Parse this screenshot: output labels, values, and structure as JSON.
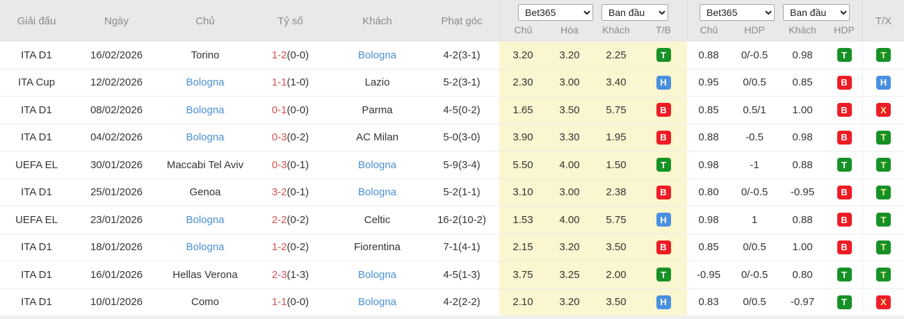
{
  "palette": {
    "header_bg": "#e9e9e9",
    "odds_block_bg": "#faf6d0",
    "badge_green": "#169126",
    "badge_blue": "#4a90e2",
    "badge_red": "#ee1c25",
    "badge_letter_yellow": "#f6f0a0",
    "team_link_blue": "#4a90d2",
    "score_red": "#d0514d"
  },
  "header": {
    "columns": {
      "league": "Giải đấu",
      "date": "Ngày",
      "home": "Chủ",
      "score": "Tỷ số",
      "away": "Khách",
      "corners": "Phạt góc"
    },
    "odds_1x2": {
      "bookmaker_selected": "Bet365",
      "line_selected": "Ban đầu",
      "sub": {
        "home": "Chủ",
        "draw": "Hòa",
        "away": "Khách",
        "result": "T/B"
      }
    },
    "odds_hdp": {
      "bookmaker_selected": "Bet365",
      "line_selected": "Ban đầu",
      "sub": {
        "home": "Chủ",
        "hdp": "HDP",
        "away": "Khách",
        "result": "HDP"
      }
    },
    "tx_label": "T/X"
  },
  "rows": [
    {
      "league": "ITA D1",
      "date": "16/02/2026",
      "home": "Torino",
      "home_highlight": false,
      "score": "1-2",
      "halftime": "(0-0)",
      "away": "Bologna",
      "away_highlight": true,
      "corners": "4-2(3-1)",
      "o1": "3.20",
      "o2": "3.20",
      "o3": "2.25",
      "r1": {
        "letter": "T",
        "color": "green",
        "fg": "white"
      },
      "h1": "0.88",
      "h2": "0/-0.5",
      "h3": "0.98",
      "r2": {
        "letter": "T",
        "color": "green",
        "fg": "white"
      },
      "tx": {
        "letter": "T",
        "color": "green",
        "fg": "yellow"
      }
    },
    {
      "league": "ITA Cup",
      "date": "12/02/2026",
      "home": "Bologna",
      "home_highlight": true,
      "score": "1-1",
      "halftime": "(1-0)",
      "away": "Lazio",
      "away_highlight": false,
      "corners": "5-2(3-1)",
      "o1": "2.30",
      "o2": "3.00",
      "o3": "3.40",
      "r1": {
        "letter": "H",
        "color": "blue",
        "fg": "white"
      },
      "h1": "0.95",
      "h2": "0/0.5",
      "h3": "0.85",
      "r2": {
        "letter": "B",
        "color": "red",
        "fg": "white"
      },
      "tx": {
        "letter": "H",
        "color": "blue",
        "fg": "white"
      }
    },
    {
      "league": "ITA D1",
      "date": "08/02/2026",
      "home": "Bologna",
      "home_highlight": true,
      "score": "0-1",
      "halftime": "(0-0)",
      "away": "Parma",
      "away_highlight": false,
      "corners": "4-5(0-2)",
      "o1": "1.65",
      "o2": "3.50",
      "o3": "5.75",
      "r1": {
        "letter": "B",
        "color": "red",
        "fg": "white"
      },
      "h1": "0.85",
      "h2": "0.5/1",
      "h3": "1.00",
      "r2": {
        "letter": "B",
        "color": "red",
        "fg": "white"
      },
      "tx": {
        "letter": "X",
        "color": "red",
        "fg": "yellow"
      }
    },
    {
      "league": "ITA D1",
      "date": "04/02/2026",
      "home": "Bologna",
      "home_highlight": true,
      "score": "0-3",
      "halftime": "(0-2)",
      "away": "AC Milan",
      "away_highlight": false,
      "corners": "5-0(3-0)",
      "o1": "3.90",
      "o2": "3.30",
      "o3": "1.95",
      "r1": {
        "letter": "B",
        "color": "red",
        "fg": "white"
      },
      "h1": "0.88",
      "h2": "-0.5",
      "h3": "0.98",
      "r2": {
        "letter": "B",
        "color": "red",
        "fg": "white"
      },
      "tx": {
        "letter": "T",
        "color": "green",
        "fg": "yellow"
      }
    },
    {
      "league": "UEFA EL",
      "date": "30/01/2026",
      "home": "Maccabi Tel Aviv",
      "home_highlight": false,
      "score": "0-3",
      "halftime": "(0-1)",
      "away": "Bologna",
      "away_highlight": true,
      "corners": "5-9(3-4)",
      "o1": "5.50",
      "o2": "4.00",
      "o3": "1.50",
      "r1": {
        "letter": "T",
        "color": "green",
        "fg": "white"
      },
      "h1": "0.98",
      "h2": "-1",
      "h3": "0.88",
      "r2": {
        "letter": "T",
        "color": "green",
        "fg": "white"
      },
      "tx": {
        "letter": "T",
        "color": "green",
        "fg": "yellow"
      }
    },
    {
      "league": "ITA D1",
      "date": "25/01/2026",
      "home": "Genoa",
      "home_highlight": false,
      "score": "3-2",
      "halftime": "(0-1)",
      "away": "Bologna",
      "away_highlight": true,
      "corners": "5-2(1-1)",
      "o1": "3.10",
      "o2": "3.00",
      "o3": "2.38",
      "r1": {
        "letter": "B",
        "color": "red",
        "fg": "white"
      },
      "h1": "0.80",
      "h2": "0/-0.5",
      "h3": "-0.95",
      "r2": {
        "letter": "B",
        "color": "red",
        "fg": "white"
      },
      "tx": {
        "letter": "T",
        "color": "green",
        "fg": "yellow"
      }
    },
    {
      "league": "UEFA EL",
      "date": "23/01/2026",
      "home": "Bologna",
      "home_highlight": true,
      "score": "2-2",
      "halftime": "(0-2)",
      "away": "Celtic",
      "away_highlight": false,
      "corners": "16-2(10-2)",
      "o1": "1.53",
      "o2": "4.00",
      "o3": "5.75",
      "r1": {
        "letter": "H",
        "color": "blue",
        "fg": "white"
      },
      "h1": "0.98",
      "h2": "1",
      "h3": "0.88",
      "r2": {
        "letter": "B",
        "color": "red",
        "fg": "white"
      },
      "tx": {
        "letter": "T",
        "color": "green",
        "fg": "yellow"
      }
    },
    {
      "league": "ITA D1",
      "date": "18/01/2026",
      "home": "Bologna",
      "home_highlight": true,
      "score": "1-2",
      "halftime": "(0-2)",
      "away": "Fiorentina",
      "away_highlight": false,
      "corners": "7-1(4-1)",
      "o1": "2.15",
      "o2": "3.20",
      "o3": "3.50",
      "r1": {
        "letter": "B",
        "color": "red",
        "fg": "white"
      },
      "h1": "0.85",
      "h2": "0/0.5",
      "h3": "1.00",
      "r2": {
        "letter": "B",
        "color": "red",
        "fg": "white"
      },
      "tx": {
        "letter": "T",
        "color": "green",
        "fg": "yellow"
      }
    },
    {
      "league": "ITA D1",
      "date": "16/01/2026",
      "home": "Hellas Verona",
      "home_highlight": false,
      "score": "2-3",
      "halftime": "(1-3)",
      "away": "Bologna",
      "away_highlight": true,
      "corners": "4-5(1-3)",
      "o1": "3.75",
      "o2": "3.25",
      "o3": "2.00",
      "r1": {
        "letter": "T",
        "color": "green",
        "fg": "white"
      },
      "h1": "-0.95",
      "h2": "0/-0.5",
      "h3": "0.80",
      "r2": {
        "letter": "T",
        "color": "green",
        "fg": "white"
      },
      "tx": {
        "letter": "T",
        "color": "green",
        "fg": "yellow"
      }
    },
    {
      "league": "ITA D1",
      "date": "10/01/2026",
      "home": "Como",
      "home_highlight": false,
      "score": "1-1",
      "halftime": "(0-0)",
      "away": "Bologna",
      "away_highlight": true,
      "corners": "4-2(2-2)",
      "o1": "2.10",
      "o2": "3.20",
      "o3": "3.50",
      "r1": {
        "letter": "H",
        "color": "blue",
        "fg": "white"
      },
      "h1": "0.83",
      "h2": "0/0.5",
      "h3": "-0.97",
      "r2": {
        "letter": "T",
        "color": "green",
        "fg": "white"
      },
      "tx": {
        "letter": "X",
        "color": "red",
        "fg": "yellow"
      }
    }
  ]
}
